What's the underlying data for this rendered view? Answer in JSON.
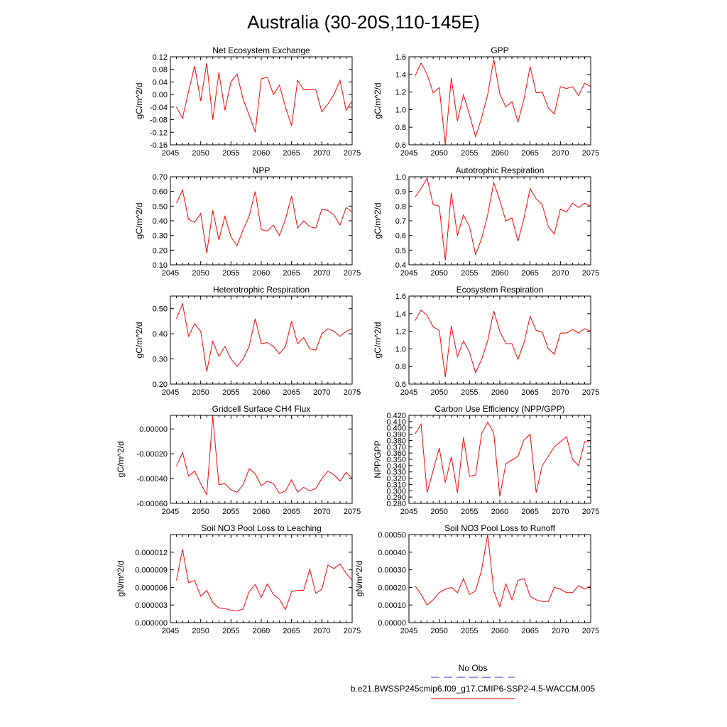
{
  "figure": {
    "title": "Australia (30-20S,110-145E)",
    "legend": [
      {
        "label": "No Obs",
        "color": "#5555cc",
        "dash": true
      },
      {
        "label": "b.e21.BWSSP245cmip6.f09_g17.CMIP6-SSP2-4.5-WACCM.005",
        "color": "#e03030",
        "dash": false
      }
    ]
  },
  "colors": {
    "series": "#ff0000",
    "axis": "#000000"
  },
  "chart_data": [
    {
      "type": "line",
      "title": "Net Ecosystem Exchange",
      "ylabel": "gC/m^2/d",
      "xlim": [
        2045,
        2075
      ],
      "ylim": [
        -0.16,
        0.12
      ],
      "xticks": [
        2045,
        2050,
        2055,
        2060,
        2065,
        2070,
        2075
      ],
      "yticks": [
        "-0.16",
        "-0.12",
        "-0.08",
        "-0.04",
        "0.00",
        "0.04",
        "0.08",
        "0.12"
      ],
      "x": [
        2046,
        2047,
        2048,
        2049,
        2050,
        2051,
        2052,
        2053,
        2054,
        2055,
        2056,
        2057,
        2058,
        2059,
        2060,
        2061,
        2062,
        2063,
        2064,
        2065,
        2066,
        2067,
        2068,
        2069,
        2070,
        2071,
        2072,
        2073,
        2074,
        2075
      ],
      "y": [
        -0.04,
        -0.075,
        0.01,
        0.09,
        -0.02,
        0.1,
        -0.08,
        0.07,
        -0.05,
        0.04,
        0.065,
        -0.015,
        -0.065,
        -0.12,
        0.05,
        0.055,
        0.0,
        0.03,
        -0.04,
        -0.1,
        0.045,
        0.015,
        0.015,
        0.015,
        -0.055,
        -0.03,
        0.0,
        0.045,
        -0.05,
        -0.02
      ]
    },
    {
      "type": "line",
      "title": "GPP",
      "ylabel": "gC/m^2/d",
      "xlim": [
        2045,
        2075
      ],
      "ylim": [
        0.6,
        1.6
      ],
      "xticks": [
        2045,
        2050,
        2055,
        2060,
        2065,
        2070,
        2075
      ],
      "yticks": [
        "0.6",
        "0.8",
        "1.0",
        "1.2",
        "1.4",
        "1.6"
      ],
      "x": [
        2046,
        2047,
        2048,
        2049,
        2050,
        2051,
        2052,
        2053,
        2054,
        2055,
        2056,
        2057,
        2058,
        2059,
        2060,
        2061,
        2062,
        2063,
        2064,
        2065,
        2066,
        2067,
        2068,
        2069,
        2070,
        2071,
        2072,
        2073,
        2074,
        2075
      ],
      "y": [
        1.38,
        1.53,
        1.4,
        1.19,
        1.25,
        0.61,
        1.36,
        0.87,
        1.17,
        0.94,
        0.69,
        0.91,
        1.17,
        1.57,
        1.18,
        1.03,
        1.09,
        0.86,
        1.12,
        1.49,
        1.19,
        1.2,
        1.02,
        0.95,
        1.26,
        1.24,
        1.26,
        1.16,
        1.3,
        1.26
      ]
    },
    {
      "type": "line",
      "title": "NPP",
      "ylabel": "gC/m^2/d",
      "xlim": [
        2045,
        2075
      ],
      "ylim": [
        0.1,
        0.7
      ],
      "xticks": [
        2045,
        2050,
        2055,
        2060,
        2065,
        2070,
        2075
      ],
      "yticks": [
        "0.10",
        "0.20",
        "0.30",
        "0.40",
        "0.50",
        "0.60",
        "0.70"
      ],
      "x": [
        2046,
        2047,
        2048,
        2049,
        2050,
        2051,
        2052,
        2053,
        2054,
        2055,
        2056,
        2057,
        2058,
        2059,
        2060,
        2061,
        2062,
        2063,
        2064,
        2065,
        2066,
        2067,
        2068,
        2069,
        2070,
        2071,
        2072,
        2073,
        2074,
        2075
      ],
      "y": [
        0.52,
        0.61,
        0.41,
        0.39,
        0.45,
        0.18,
        0.47,
        0.27,
        0.43,
        0.29,
        0.23,
        0.34,
        0.43,
        0.6,
        0.34,
        0.33,
        0.37,
        0.3,
        0.41,
        0.57,
        0.35,
        0.4,
        0.36,
        0.35,
        0.48,
        0.47,
        0.44,
        0.37,
        0.49,
        0.46
      ]
    },
    {
      "type": "line",
      "title": "Autotrophic Respiration",
      "ylabel": "gC/m^2/d",
      "xlim": [
        2045,
        2075
      ],
      "ylim": [
        0.4,
        1.0
      ],
      "xticks": [
        2045,
        2050,
        2055,
        2060,
        2065,
        2070,
        2075
      ],
      "yticks": [
        "0.4",
        "0.5",
        "0.6",
        "0.7",
        "0.8",
        "0.9",
        "1.0"
      ],
      "x": [
        2046,
        2047,
        2048,
        2049,
        2050,
        2051,
        2052,
        2053,
        2054,
        2055,
        2056,
        2057,
        2058,
        2059,
        2060,
        2061,
        2062,
        2063,
        2064,
        2065,
        2066,
        2067,
        2068,
        2069,
        2070,
        2071,
        2072,
        2073,
        2074,
        2075
      ],
      "y": [
        0.86,
        0.92,
        0.99,
        0.81,
        0.8,
        0.43,
        0.89,
        0.6,
        0.74,
        0.66,
        0.47,
        0.58,
        0.74,
        0.96,
        0.84,
        0.7,
        0.72,
        0.56,
        0.72,
        0.92,
        0.85,
        0.81,
        0.66,
        0.61,
        0.78,
        0.76,
        0.82,
        0.79,
        0.82,
        0.8
      ]
    },
    {
      "type": "line",
      "title": "Heterotrophic Respiration",
      "ylabel": "gC/m^2/d",
      "xlim": [
        2045,
        2075
      ],
      "ylim": [
        0.2,
        0.55
      ],
      "xticks": [
        2045,
        2050,
        2055,
        2060,
        2065,
        2070,
        2075
      ],
      "yticks": [
        "0.20",
        "0.30",
        "0.40",
        "0.50"
      ],
      "x": [
        2046,
        2047,
        2048,
        2049,
        2050,
        2051,
        2052,
        2053,
        2054,
        2055,
        2056,
        2057,
        2058,
        2059,
        2060,
        2061,
        2062,
        2063,
        2064,
        2065,
        2066,
        2067,
        2068,
        2069,
        2070,
        2071,
        2072,
        2073,
        2074,
        2075
      ],
      "y": [
        0.46,
        0.52,
        0.39,
        0.44,
        0.41,
        0.25,
        0.37,
        0.31,
        0.35,
        0.3,
        0.27,
        0.3,
        0.35,
        0.46,
        0.36,
        0.365,
        0.35,
        0.32,
        0.35,
        0.45,
        0.36,
        0.385,
        0.34,
        0.335,
        0.4,
        0.42,
        0.41,
        0.39,
        0.41,
        0.42
      ]
    },
    {
      "type": "line",
      "title": "Ecosystem Respiration",
      "ylabel": "gC/m^2/d",
      "xlim": [
        2045,
        2075
      ],
      "ylim": [
        0.6,
        1.6
      ],
      "xticks": [
        2045,
        2050,
        2055,
        2060,
        2065,
        2070,
        2075
      ],
      "yticks": [
        "0.6",
        "0.8",
        "1.0",
        "1.2",
        "1.4",
        "1.6"
      ],
      "x": [
        2046,
        2047,
        2048,
        2049,
        2050,
        2051,
        2052,
        2053,
        2054,
        2055,
        2056,
        2057,
        2058,
        2059,
        2060,
        2061,
        2062,
        2063,
        2064,
        2065,
        2066,
        2067,
        2068,
        2069,
        2070,
        2071,
        2072,
        2073,
        2074,
        2075
      ],
      "y": [
        1.32,
        1.44,
        1.38,
        1.25,
        1.21,
        0.68,
        1.26,
        0.91,
        1.09,
        0.96,
        0.73,
        0.88,
        1.09,
        1.43,
        1.2,
        1.06,
        1.06,
        0.88,
        1.07,
        1.37,
        1.21,
        1.19,
        1.0,
        0.94,
        1.18,
        1.18,
        1.22,
        1.18,
        1.23,
        1.2
      ]
    },
    {
      "type": "line",
      "title": "Gridcell Surface CH4 Flux",
      "ylabel": "gC/m^2/d",
      "xlim": [
        2045,
        2075
      ],
      "ylim": [
        -0.0006,
        0.00011
      ],
      "xticks": [
        2045,
        2050,
        2055,
        2060,
        2065,
        2070,
        2075
      ],
      "yticks": [
        "-0.00060",
        "-0.00040",
        "-0.00020",
        "0.00000"
      ],
      "yticks_values": [
        -0.0006,
        -0.0004,
        -0.0002,
        0.0
      ],
      "x": [
        2046,
        2047,
        2048,
        2049,
        2050,
        2051,
        2052,
        2053,
        2054,
        2055,
        2056,
        2057,
        2058,
        2059,
        2060,
        2061,
        2062,
        2063,
        2064,
        2065,
        2066,
        2067,
        2068,
        2069,
        2070,
        2071,
        2072,
        2073,
        2074,
        2075
      ],
      "y": [
        -0.0003,
        -0.00019,
        -0.00038,
        -0.00034,
        -0.00044,
        -0.00053,
        0.0001,
        -0.00045,
        -0.00044,
        -0.00049,
        -0.00051,
        -0.00045,
        -0.00032,
        -0.00036,
        -0.00046,
        -0.00042,
        -0.00044,
        -0.00052,
        -0.0005,
        -0.00041,
        -0.00051,
        -0.00047,
        -0.0005,
        -0.00048,
        -0.0004,
        -0.00034,
        -0.00037,
        -0.00042,
        -0.00035,
        -0.0004
      ]
    },
    {
      "type": "line",
      "title": "Carbon Use Efficiency (NPP/GPP)",
      "ylabel": "NPP/GPP",
      "xlim": [
        2045,
        2075
      ],
      "ylim": [
        0.28,
        0.42
      ],
      "xticks": [
        2045,
        2050,
        2055,
        2060,
        2065,
        2070,
        2075
      ],
      "yticks": [
        "0.280",
        "0.290",
        "0.300",
        "0.310",
        "0.320",
        "0.330",
        "0.340",
        "0.350",
        "0.360",
        "0.370",
        "0.380",
        "0.390",
        "0.400",
        "0.410",
        "0.420"
      ],
      "yticks_values": [
        0.28,
        0.29,
        0.3,
        0.31,
        0.32,
        0.33,
        0.34,
        0.35,
        0.36,
        0.37,
        0.38,
        0.39,
        0.4,
        0.41,
        0.42
      ],
      "x": [
        2046,
        2047,
        2048,
        2049,
        2050,
        2051,
        2052,
        2053,
        2054,
        2055,
        2056,
        2057,
        2058,
        2059,
        2060,
        2061,
        2062,
        2063,
        2064,
        2065,
        2066,
        2067,
        2068,
        2069,
        2070,
        2071,
        2072,
        2073,
        2074,
        2075
      ],
      "y": [
        0.39,
        0.406,
        0.297,
        0.332,
        0.368,
        0.313,
        0.354,
        0.297,
        0.385,
        0.323,
        0.325,
        0.391,
        0.409,
        0.392,
        0.291,
        0.343,
        0.349,
        0.355,
        0.381,
        0.39,
        0.297,
        0.34,
        0.355,
        0.37,
        0.378,
        0.386,
        0.35,
        0.34,
        0.378,
        0.378
      ]
    },
    {
      "type": "line",
      "title": "Soil NO3 Pool Loss to Leaching",
      "ylabel": "gN/m^2/d",
      "xlim": [
        2045,
        2075
      ],
      "ylim": [
        0.0,
        1.5e-05
      ],
      "xticks": [
        2045,
        2050,
        2055,
        2060,
        2065,
        2070,
        2075
      ],
      "yticks": [
        "0.000000",
        "0.000003",
        "0.000006",
        "0.000009",
        "0.000012"
      ],
      "yticks_values": [
        0.0,
        3e-06,
        6e-06,
        9e-06,
        1.2e-05
      ],
      "x": [
        2046,
        2047,
        2048,
        2049,
        2050,
        2051,
        2052,
        2053,
        2054,
        2055,
        2056,
        2057,
        2058,
        2059,
        2060,
        2061,
        2062,
        2063,
        2064,
        2065,
        2066,
        2067,
        2068,
        2069,
        2070,
        2071,
        2072,
        2073,
        2074,
        2075
      ],
      "y": [
        7.2e-06,
        1.25e-05,
        6.8e-06,
        7.2e-06,
        4.5e-06,
        5.5e-06,
        3.4e-06,
        2.5e-06,
        2.4e-06,
        2.1e-06,
        2e-06,
        2.3e-06,
        5.3e-06,
        6.5e-06,
        4.3e-06,
        6.6e-06,
        4.8e-06,
        4e-06,
        2.2e-06,
        5.3e-06,
        5.5e-06,
        5.5e-06,
        9.1e-06,
        5e-06,
        5.7e-06,
        9.8e-06,
        9.2e-06,
        1e-05,
        8.4e-06,
        7.2e-06
      ]
    },
    {
      "type": "line",
      "title": "Soil NO3 Pool Loss to Runoff",
      "ylabel": "gN/m^2/d",
      "xlim": [
        2045,
        2075
      ],
      "ylim": [
        0.0,
        0.0005
      ],
      "xticks": [
        2045,
        2050,
        2055,
        2060,
        2065,
        2070,
        2075
      ],
      "yticks": [
        "0.00000",
        "0.00010",
        "0.00020",
        "0.00030",
        "0.00040",
        "0.00050"
      ],
      "yticks_values": [
        0.0,
        0.0001,
        0.0002,
        0.0003,
        0.0004,
        0.0005
      ],
      "x": [
        2046,
        2047,
        2048,
        2049,
        2050,
        2051,
        2052,
        2053,
        2054,
        2055,
        2056,
        2057,
        2058,
        2059,
        2060,
        2061,
        2062,
        2063,
        2064,
        2065,
        2066,
        2067,
        2068,
        2069,
        2070,
        2071,
        2072,
        2073,
        2074,
        2075
      ],
      "y": [
        0.00021,
        0.00016,
        0.0001,
        0.00013,
        0.00017,
        0.00019,
        0.0002,
        0.00017,
        0.00025,
        0.00016,
        0.00018,
        0.0003,
        0.0005,
        0.00018,
        9e-05,
        0.00022,
        0.00013,
        0.00024,
        0.00025,
        0.00015,
        0.00013,
        0.00012,
        0.00012,
        0.0002,
        0.00019,
        0.00017,
        0.00017,
        0.00021,
        0.00019,
        0.00021
      ]
    }
  ]
}
